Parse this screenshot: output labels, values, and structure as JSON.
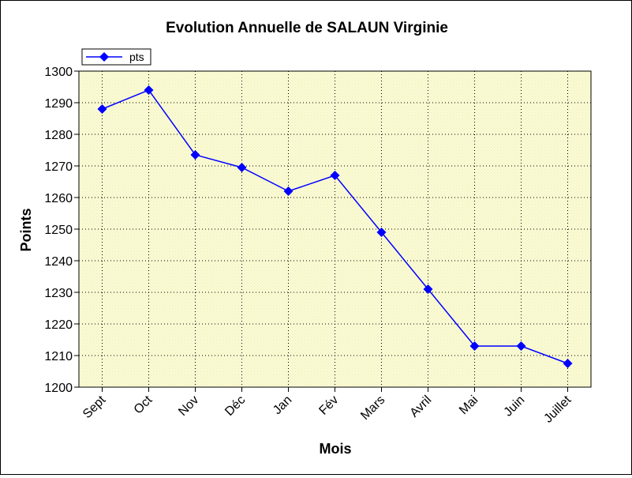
{
  "chart_data": {
    "type": "line",
    "title": "Evolution Annuelle de SALAUN Virginie",
    "xlabel": "Mois",
    "ylabel": "Points",
    "categories": [
      "Sept",
      "Oct",
      "Nov",
      "Déc",
      "Jan",
      "Fév",
      "Mars",
      "Avril",
      "Mai",
      "Juin",
      "Juillet"
    ],
    "series": [
      {
        "name": "pts",
        "values": [
          1288,
          1294,
          1273.5,
          1269.5,
          1262,
          1267,
          1249,
          1231,
          1213,
          1213,
          1207.5
        ],
        "color": "#0000ff",
        "marker": "diamond"
      }
    ],
    "ylim": [
      1200,
      1300
    ],
    "yticks": [
      1200,
      1210,
      1220,
      1230,
      1240,
      1250,
      1260,
      1270,
      1280,
      1290,
      1300
    ],
    "grid": true,
    "legend_position": "top-left",
    "plot_background": "#fafad2"
  }
}
